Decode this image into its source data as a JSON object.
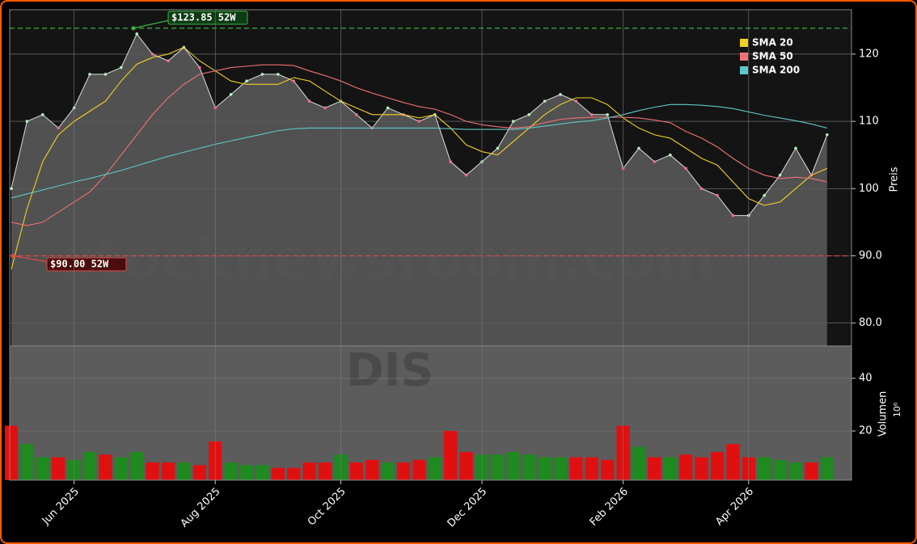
{
  "chart_data": [
    {
      "type": "line",
      "watermark": "stocknewsroom.com",
      "ylabel": "Preis",
      "ylim": [
        76.6,
        126.6
      ],
      "yticks": [
        {
          "value": 80,
          "label": "80.0"
        },
        {
          "value": 90,
          "label": "90.0"
        },
        100,
        110,
        120
      ],
      "grid": true,
      "area_color": "#5c5c5c",
      "values": [
        100,
        110,
        111,
        109,
        112,
        117,
        117,
        118,
        123,
        120,
        119,
        121,
        118,
        112,
        114,
        116,
        117,
        117,
        116,
        113,
        112,
        113,
        111,
        109,
        112,
        111,
        110,
        111,
        104,
        102,
        104,
        106,
        110,
        111,
        113,
        114,
        113,
        111,
        111,
        103,
        106,
        104,
        105,
        103,
        100,
        99,
        96,
        96,
        99,
        102,
        106,
        102,
        108
      ],
      "series": [
        {
          "name": "SMA 20",
          "color": "#f2d024",
          "values": [
            88,
            97,
            104,
            108,
            110,
            111.5,
            113,
            116,
            118.5,
            119.5,
            120,
            121,
            119,
            117.5,
            116,
            115.5,
            115.5,
            115.5,
            116.5,
            116,
            114.5,
            113,
            112,
            111,
            111,
            111,
            110.5,
            111,
            109,
            106.5,
            105.5,
            105,
            107,
            109,
            111,
            112.5,
            113.5,
            113.5,
            112.5,
            110.5,
            109,
            108,
            107.5,
            106,
            104.5,
            103.5,
            101,
            98.5,
            97.5,
            98,
            100,
            102,
            103
          ]
        },
        {
          "name": "SMA 50",
          "color": "#f07272",
          "values": [
            95,
            94.5,
            95,
            96.5,
            98,
            99.5,
            102,
            105,
            108,
            111,
            113.5,
            115.5,
            117,
            117.5,
            118,
            118.2,
            118.4,
            118.4,
            118.3,
            117.5,
            116.8,
            116,
            115,
            114.2,
            113.5,
            112.8,
            112.2,
            111.8,
            111,
            110,
            109.5,
            109.2,
            109,
            109.2,
            109.8,
            110.3,
            110.5,
            110.6,
            110.6,
            110.6,
            110.5,
            110.2,
            109.8,
            108.5,
            107.5,
            106.2,
            104.5,
            103,
            102,
            101.5,
            101.7,
            101.5,
            101
          ]
        },
        {
          "name": "SMA 200",
          "color": "#5ec8c8",
          "values": [
            98.6,
            99.2,
            99.8,
            100.4,
            101,
            101.5,
            102.1,
            102.7,
            103.4,
            104.1,
            104.8,
            105.4,
            106,
            106.6,
            107.1,
            107.6,
            108.1,
            108.6,
            108.9,
            109,
            109,
            109,
            109,
            109,
            109,
            109,
            109,
            109,
            108.9,
            108.8,
            108.8,
            108.8,
            108.8,
            109,
            109.3,
            109.6,
            109.9,
            110.1,
            110.5,
            111,
            111.6,
            112.1,
            112.5,
            112.5,
            112.4,
            112.2,
            111.9,
            111.4,
            110.9,
            110.5,
            110.1,
            109.6,
            109
          ]
        }
      ],
      "legend": "upper right",
      "reference_lines": [
        {
          "value": 123.85,
          "label": "$123.85 52W",
          "color": "#3cb043"
        },
        {
          "value": 90.0,
          "label": "$90.00 52W",
          "color": "#e04848"
        }
      ]
    },
    {
      "type": "bar",
      "watermark": "DIS",
      "ylabel": "Volumen",
      "yscale_label": "10⁶",
      "ylim": [
        1.3,
        52.3
      ],
      "yticks": [
        20,
        40
      ],
      "grid": true,
      "categories": [
        null,
        null,
        null,
        null,
        "Jun 2025",
        null,
        null,
        null,
        null,
        null,
        null,
        null,
        null,
        "Aug 2025",
        null,
        null,
        null,
        null,
        null,
        null,
        null,
        "Oct 2025",
        null,
        null,
        null,
        null,
        null,
        null,
        null,
        null,
        "Dec 2025",
        null,
        null,
        null,
        null,
        null,
        null,
        null,
        null,
        "Feb 2026",
        null,
        null,
        null,
        null,
        null,
        null,
        null,
        "Apr 2026",
        null,
        null,
        null,
        null,
        null
      ],
      "values": [
        22,
        15,
        10,
        10,
        9,
        12,
        11,
        10,
        12,
        8,
        8,
        8,
        7,
        16,
        8,
        7,
        7,
        6,
        6,
        8,
        8,
        11,
        8,
        9,
        8,
        8,
        9,
        10,
        20,
        12,
        11,
        11,
        12,
        11,
        10,
        10,
        10,
        10,
        9,
        22,
        14,
        10,
        10,
        11,
        10,
        12,
        15,
        10,
        10,
        9,
        8,
        8,
        10
      ],
      "colors": [
        "#e01010",
        "#1f8a1f",
        "#1f8a1f",
        "#e01010",
        "#1f8a1f",
        "#1f8a1f",
        "#e01010",
        "#1f8a1f",
        "#1f8a1f",
        "#e01010",
        "#e01010",
        "#1f8a1f",
        "#e01010",
        "#e01010",
        "#1f8a1f",
        "#1f8a1f",
        "#1f8a1f",
        "#e01010",
        "#e01010",
        "#e01010",
        "#e01010",
        "#1f8a1f",
        "#e01010",
        "#e01010",
        "#1f8a1f",
        "#e01010",
        "#e01010",
        "#1f8a1f",
        "#e01010",
        "#e01010",
        "#1f8a1f",
        "#1f8a1f",
        "#1f8a1f",
        "#1f8a1f",
        "#1f8a1f",
        "#1f8a1f",
        "#e01010",
        "#e01010",
        "#e01010",
        "#e01010",
        "#1f8a1f",
        "#e01010",
        "#1f8a1f",
        "#e01010",
        "#e01010",
        "#e01010",
        "#e01010",
        "#e01010",
        "#1f8a1f",
        "#1f8a1f",
        "#1f8a1f",
        "#e01010",
        "#1f8a1f"
      ]
    }
  ]
}
